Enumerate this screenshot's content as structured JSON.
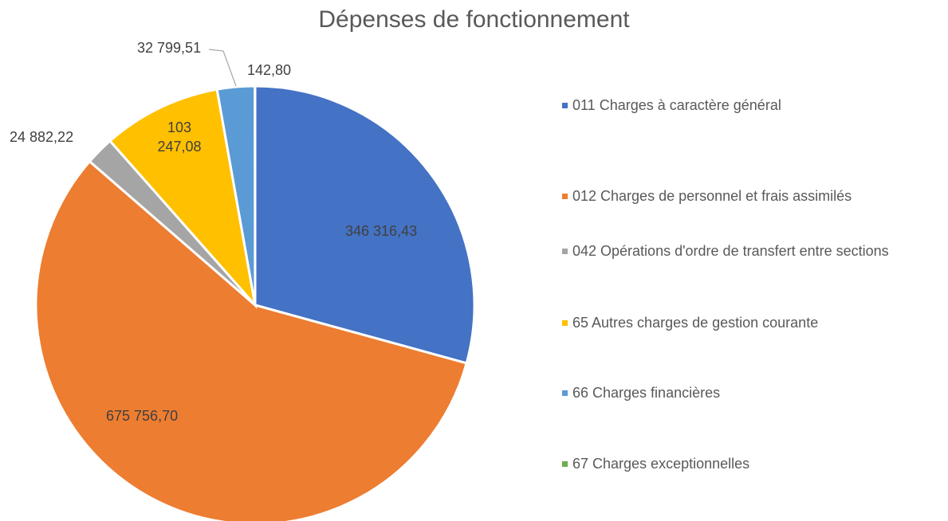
{
  "chart_data": {
    "type": "pie",
    "title": "Dépenses de fonctionnement",
    "categories": [
      "011 Charges à caractère général",
      "012 Charges de personnel et frais assimilés",
      "042 Opérations d'ordre de transfert entre sections",
      "65 Autres charges de gestion courante",
      "66 Charges financières",
      "67 Charges exceptionnelles"
    ],
    "values": [
      346316.43,
      675756.7,
      24882.22,
      103247.08,
      32799.51,
      142.8
    ],
    "value_labels": [
      "346 316,43",
      "675 756,70",
      "24 882,22",
      "103 247,08",
      "32 799,51",
      "142,80"
    ],
    "colors": [
      "#4472c4",
      "#ed7d31",
      "#a5a5a5",
      "#ffc000",
      "#5b9bd5",
      "#70ad47"
    ],
    "legend": "right"
  }
}
